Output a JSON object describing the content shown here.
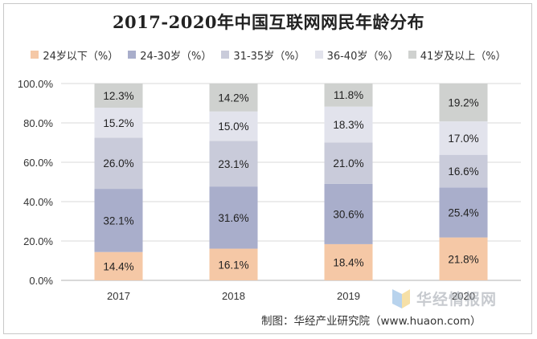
{
  "chart_data": {
    "type": "bar",
    "stacked": true,
    "title": "2017-2020年中国互联网网民年龄分布",
    "categories": [
      "2017",
      "2018",
      "2019",
      "2020"
    ],
    "series": [
      {
        "name": "24岁以下（%）",
        "color": "#f5c8a6",
        "values": [
          14.4,
          16.1,
          18.4,
          21.8
        ],
        "labels": [
          "14.4%",
          "16.1%",
          "18.4%",
          "21.8%"
        ]
      },
      {
        "name": "24-30岁（%）",
        "color": "#a9aecb",
        "values": [
          32.1,
          31.6,
          30.6,
          25.4
        ],
        "labels": [
          "32.1%",
          "31.6%",
          "30.6%",
          "25.4%"
        ]
      },
      {
        "name": "31-35岁（%）",
        "color": "#c9cbda",
        "values": [
          26.0,
          23.1,
          21.0,
          16.6
        ],
        "labels": [
          "26.0%",
          "23.1%",
          "21.0%",
          "16.6%"
        ]
      },
      {
        "name": "36-40岁（%）",
        "color": "#e2e3ec",
        "values": [
          15.2,
          15.0,
          18.3,
          17.0
        ],
        "labels": [
          "15.2%",
          "15.0%",
          "18.3%",
          "17.0%"
        ]
      },
      {
        "name": "41岁及以上（%）",
        "color": "#cfd1cf",
        "values": [
          12.3,
          14.2,
          11.8,
          19.2
        ],
        "labels": [
          "12.3%",
          "14.2%",
          "11.8%",
          "19.2%"
        ]
      }
    ],
    "ylim": [
      0,
      100
    ],
    "yticks": [
      "0.0%",
      "20.0%",
      "40.0%",
      "60.0%",
      "80.0%",
      "100.0%"
    ],
    "ytick_values": [
      0,
      20,
      40,
      60,
      80,
      100
    ],
    "grid": true,
    "legend_position": "top"
  },
  "source": "制图：华经产业研究院（www.huaon.com）",
  "watermark": {
    "text": "华经情报网",
    "icon": "huajing-logo-icon"
  }
}
